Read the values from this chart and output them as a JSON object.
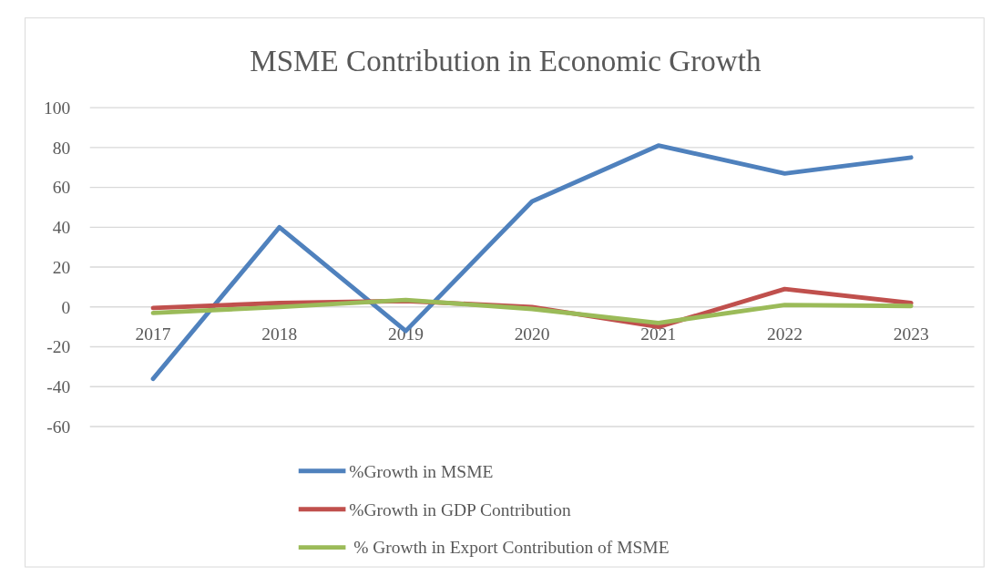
{
  "chart_data": {
    "type": "line",
    "title": "MSME Contribution in Economic Growth",
    "categories": [
      "2017",
      "2018",
      "2019",
      "2020",
      "2021",
      "2022",
      "2023"
    ],
    "series": [
      {
        "name": "%Growth in MSME",
        "color": "#4f81bd",
        "values": [
          -36,
          40,
          -12,
          53,
          81,
          67,
          75
        ]
      },
      {
        "name": "%Growth in GDP Contribution",
        "color": "#c0504d",
        "values": [
          -0.5,
          2,
          3,
          0,
          -10,
          9,
          2
        ]
      },
      {
        "name": " % Growth in Export Contribution of MSME",
        "color": "#9bbb59",
        "values": [
          -3,
          0,
          3.5,
          -1,
          -8,
          1,
          0.5
        ]
      }
    ],
    "ylim": [
      -60,
      100
    ],
    "yticks": [
      -60,
      -40,
      -20,
      0,
      20,
      40,
      60,
      80,
      100
    ],
    "grid": "y",
    "legend": "bottom",
    "marker": "none",
    "line_style": "solid"
  }
}
